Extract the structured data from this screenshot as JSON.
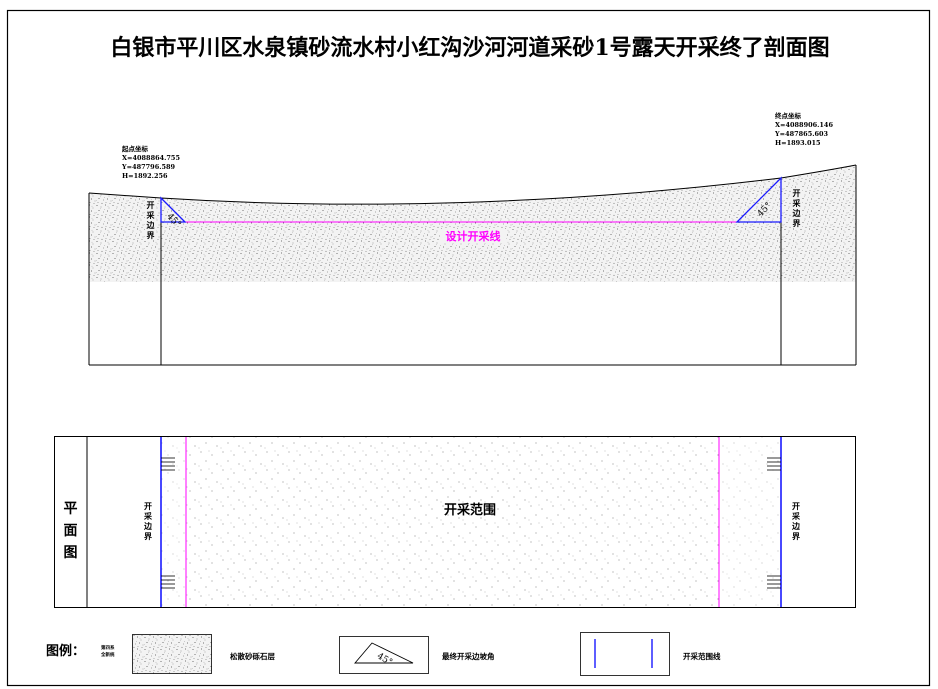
{
  "title": "白银市平川区水泉镇砂流水村小红沟沙河河道采砂1号露天开采终了剖面图",
  "start_point": {
    "label": "起点坐标",
    "x": "X=4088864.755",
    "y": "Y=487796.589",
    "h": "H=1892.256"
  },
  "end_point": {
    "label": "终点坐标",
    "x": "X=4088906.146",
    "y": "Y=487865.603",
    "h": "H=1893.015"
  },
  "section": {
    "boundary_left": "开采边界",
    "boundary_right": "开采边界",
    "design_line": "设计开采线",
    "angle_left": "45°",
    "angle_right": "45°"
  },
  "plan": {
    "side_label": "平面图",
    "range_label": "开采范围",
    "boundary_left": "开采边界",
    "boundary_right": "开采边界"
  },
  "legend": {
    "heading": "图例：",
    "small_label_1": "第四系",
    "small_label_2": "全新统",
    "item1": "松散砂砾石层",
    "item2_angle": "45°",
    "item2": "最终开采边坡角",
    "item3": "开采范围线"
  },
  "colors": {
    "design_line": "#ff00ff",
    "boundary_line": "#0000cc",
    "ink": "#000000"
  }
}
